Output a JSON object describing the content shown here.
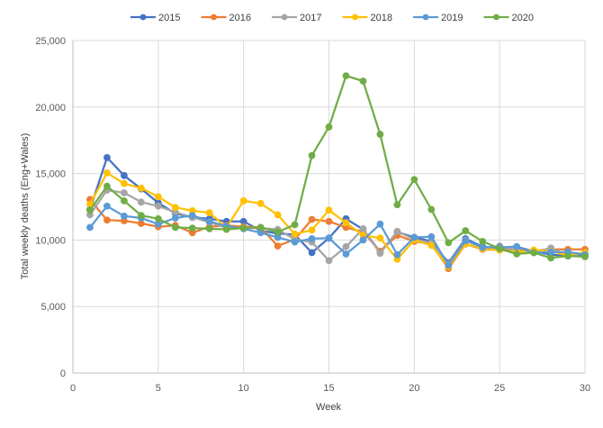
{
  "chart_data": {
    "type": "line",
    "title": "",
    "xlabel": "Week",
    "ylabel": "Total weekly deaths (Eng+Wales)",
    "xlim": [
      0,
      30
    ],
    "ylim": [
      0,
      25000
    ],
    "xticks": [
      0,
      5,
      10,
      15,
      20,
      25,
      30
    ],
    "yticks": [
      0,
      5000,
      10000,
      15000,
      20000,
      25000
    ],
    "xtick_labels": [
      "0",
      "5",
      "10",
      "15",
      "20",
      "25",
      "30"
    ],
    "ytick_labels": [
      "0",
      "5,000",
      "10,000",
      "15,000",
      "20,000",
      "25,000"
    ],
    "grid": "both",
    "legend_position": "top",
    "series": [
      {
        "name": "2015",
        "color": "#4472C4",
        "x": [
          1,
          2,
          3,
          4,
          5,
          6,
          7,
          8,
          9,
          10,
          11,
          12,
          13,
          14,
          15,
          16,
          17,
          18,
          19,
          20,
          21,
          22,
          23,
          24,
          25,
          26,
          27,
          28,
          29,
          30
        ],
        "values": [
          12300,
          16200,
          14850,
          13850,
          12800,
          12000,
          11700,
          11600,
          11400,
          11400,
          10700,
          10500,
          10400,
          9050,
          10150,
          11600,
          10800,
          9100,
          10600,
          10200,
          9900,
          8300,
          10100,
          9500,
          9400,
          9500,
          9150,
          8900,
          8800,
          8850
        ]
      },
      {
        "name": "2016",
        "color": "#ED7D31",
        "x": [
          1,
          2,
          3,
          4,
          5,
          6,
          7,
          8,
          9,
          10,
          11,
          12,
          13,
          14,
          15,
          16,
          17,
          18,
          19,
          20,
          21,
          22,
          23,
          24,
          25,
          26,
          27,
          28,
          29,
          30
        ],
        "values": [
          13050,
          11500,
          11450,
          11250,
          11000,
          11100,
          10550,
          11000,
          11100,
          11000,
          10950,
          9550,
          10050,
          11550,
          11400,
          10950,
          10600,
          9150,
          10350,
          9900,
          9700,
          7850,
          9700,
          9300,
          9250,
          9300,
          9200,
          9300,
          9300,
          9300
        ]
      },
      {
        "name": "2017",
        "color": "#A5A5A5",
        "x": [
          1,
          2,
          3,
          4,
          5,
          6,
          7,
          8,
          9,
          10,
          11,
          12,
          13,
          14,
          15,
          16,
          17,
          18,
          19,
          20,
          21,
          22,
          23,
          24,
          25,
          26,
          27,
          28,
          29,
          30
        ],
        "values": [
          11900,
          13750,
          13550,
          12850,
          12550,
          12100,
          11700,
          11350,
          10900,
          10900,
          10900,
          10800,
          10050,
          9850,
          8450,
          9500,
          10850,
          9000,
          10650,
          10050,
          9800,
          8200,
          10000,
          9400,
          9550,
          9200,
          9100,
          9400,
          8850,
          9000
        ]
      },
      {
        "name": "2018",
        "color": "#FFC000",
        "x": [
          1,
          2,
          3,
          4,
          5,
          6,
          7,
          8,
          9,
          10,
          11,
          12,
          13,
          14,
          15,
          16,
          17,
          18,
          19,
          20,
          21,
          22,
          23,
          24,
          25,
          26,
          27,
          28,
          29,
          30
        ],
        "values": [
          12700,
          15050,
          14250,
          13900,
          13250,
          12450,
          12200,
          12050,
          10950,
          12950,
          12750,
          11900,
          10450,
          10750,
          12250,
          11300,
          10350,
          10150,
          8550,
          10000,
          9600,
          8000,
          9700,
          9350,
          9250,
          9100,
          9250,
          9150,
          8850,
          9050
        ]
      },
      {
        "name": "2019",
        "color": "#5B9BD5",
        "x": [
          1,
          2,
          3,
          4,
          5,
          6,
          7,
          8,
          9,
          10,
          11,
          12,
          13,
          14,
          15,
          16,
          17,
          18,
          19,
          20,
          21,
          22,
          23,
          24,
          25,
          26,
          27,
          28,
          29,
          30
        ],
        "values": [
          10950,
          12550,
          11800,
          11650,
          11200,
          11650,
          11850,
          11400,
          11050,
          10850,
          10550,
          10200,
          9850,
          10100,
          10150,
          8950,
          10000,
          11200,
          8900,
          10200,
          10250,
          8100,
          9950,
          9450,
          9450,
          9500,
          9050,
          9100,
          9100,
          8900
        ]
      },
      {
        "name": "2020",
        "color": "#70AD47",
        "x": [
          1,
          2,
          3,
          4,
          5,
          6,
          7,
          8,
          9,
          10,
          11,
          12,
          13,
          14,
          15,
          16,
          17,
          18,
          19,
          20,
          21,
          22,
          23,
          24,
          25,
          26,
          27,
          28,
          29,
          30
        ],
        "values": [
          12250,
          14050,
          12950,
          11850,
          11600,
          10950,
          10900,
          10850,
          10800,
          10900,
          10950,
          10600,
          11150,
          16350,
          18500,
          22350,
          21950,
          17950,
          12650,
          14550,
          12300,
          9800,
          10700,
          9900,
          9350,
          8950,
          9050,
          8650,
          8800,
          8750
        ]
      }
    ]
  }
}
